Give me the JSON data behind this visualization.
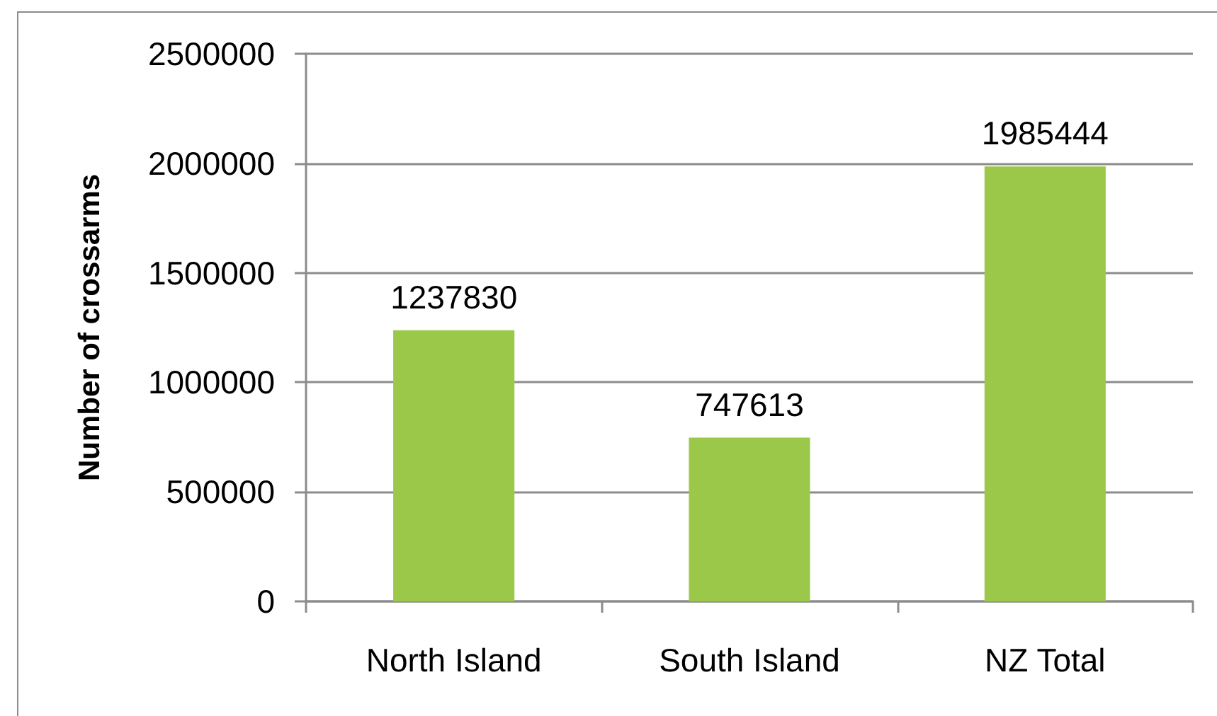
{
  "chart_data": {
    "type": "bar",
    "ylabel": "Number of crossarms",
    "categories": [
      "North Island",
      "South Island",
      "NZ Total"
    ],
    "values": [
      1237830,
      747613,
      1985444
    ],
    "color": "#9cc84a",
    "ylim": [
      0,
      2500000
    ],
    "yticks": [
      0,
      500000,
      1000000,
      1500000,
      2000000,
      2500000
    ],
    "grid": "y",
    "data_labels": true
  }
}
